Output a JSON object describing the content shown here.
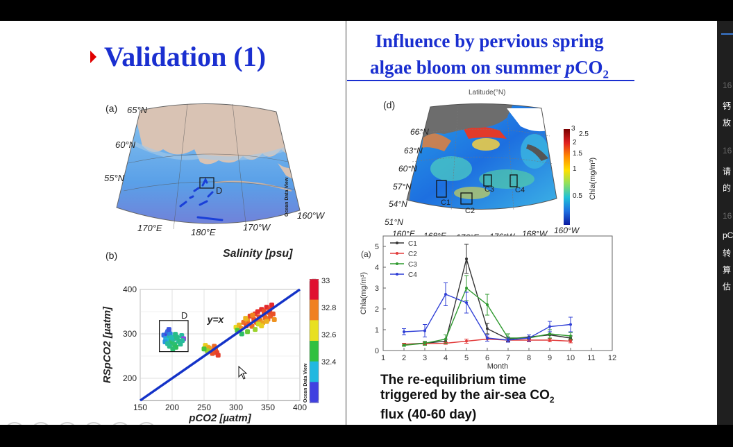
{
  "slide_left": {
    "title": "Validation (1)",
    "panel_a": {
      "label": "(a)",
      "lat_labels": [
        "65°N",
        "60°N",
        "55°N"
      ],
      "lon_labels": [
        "170°E",
        "180°E",
        "170°W",
        "160°W"
      ],
      "box_label": "D",
      "watermark": "Ocean Data View"
    },
    "panel_b": {
      "label": "(b)",
      "colorbar_title": "Salinity [psu]",
      "colorbar_ticks": [
        "33",
        "32.8",
        "32.6",
        "32.4"
      ],
      "box_label": "D",
      "line_label": "y=x",
      "watermark": "Ocean Data View"
    }
  },
  "slide_right": {
    "title_line1": "Influence by pervious spring",
    "title_line2_prefix": "algae bloom on summer ",
    "title_line2_p": "p",
    "title_line2_co": "CO",
    "title_line2_sub": "2",
    "panel_d": {
      "label": "(d)",
      "top_cut_label": "Latitude(°N)",
      "lat_labels": [
        "66°N",
        "63°N",
        "60°N",
        "57°N",
        "54°N",
        "51°N"
      ],
      "lon_labels": [
        "160°E",
        "168°E",
        "176°E",
        "176°W",
        "168°W",
        "160°W"
      ],
      "box_labels": [
        "C1",
        "C2",
        "C3",
        "C4"
      ],
      "colorbar_label": "Chla(mg/m³)",
      "colorbar_ticks": [
        "3",
        "2.5",
        "2",
        "1.5",
        "1",
        "0.5"
      ]
    },
    "caption_line1": "The re-equilibrium time",
    "caption_line2": "triggered by the air-sea CO",
    "caption_line2_sub": "2",
    "caption_line3": "flux (40-60 day)"
  },
  "side_panel": {
    "lines": [
      "16",
      "钙",
      "放",
      "16",
      "请",
      "的",
      "16",
      "pC",
      "转",
      "算",
      "估"
    ]
  },
  "controls": [
    "◁",
    "▷",
    "✎",
    "▣",
    "⚲",
    "⋯"
  ],
  "chart_data": [
    {
      "type": "scatter",
      "panel": "(b)",
      "xlabel": "pCO2 [µatm]",
      "ylabel": "RSpCO2 [µatm]",
      "xlim": [
        150,
        400
      ],
      "ylim": [
        150,
        400
      ],
      "xticks": [
        150,
        200,
        250,
        300,
        350,
        400
      ],
      "yticks": [
        200,
        300,
        400
      ],
      "grid": true,
      "reference_line": {
        "label": "y=x",
        "from": [
          150,
          150
        ],
        "to": [
          400,
          400
        ]
      },
      "colorbar": {
        "title": "Salinity [psu]",
        "min": 32.3,
        "max": 33.1
      },
      "series": [
        {
          "x": [
            187,
            190,
            192,
            194,
            196,
            193,
            198,
            200,
            197,
            195,
            202,
            204,
            199,
            191,
            205,
            206,
            210,
            208,
            212,
            215,
            218,
            196,
            201,
            189,
            193,
            207,
            213,
            216
          ],
          "y": [
            297,
            290,
            301,
            285,
            295,
            305,
            282,
            279,
            300,
            310,
            288,
            276,
            292,
            286,
            299,
            270,
            284,
            291,
            281,
            296,
            289,
            272,
            266,
            282,
            278,
            293,
            277,
            285
          ],
          "s": [
            32.45,
            32.5,
            32.4,
            32.62,
            32.6,
            32.45,
            32.63,
            32.65,
            32.48,
            32.42,
            32.6,
            32.64,
            32.58,
            32.55,
            32.62,
            32.66,
            32.6,
            32.62,
            32.63,
            32.6,
            32.35,
            32.62,
            32.64,
            32.5,
            32.6,
            32.62,
            32.61,
            32.6
          ]
        },
        {
          "x": [
            252,
            256,
            258,
            262,
            265,
            268,
            270,
            258,
            263,
            266,
            272,
            255,
            250
          ],
          "y": [
            274,
            270,
            266,
            262,
            259,
            263,
            258,
            268,
            256,
            272,
            252,
            262,
            266
          ],
          "s": [
            32.82,
            32.85,
            32.9,
            32.95,
            33.0,
            32.98,
            33.02,
            32.88,
            33.0,
            32.96,
            33.03,
            32.75,
            32.7
          ]
        },
        {
          "x": [
            300,
            305,
            308,
            312,
            316,
            318,
            320,
            322,
            325,
            328,
            330,
            332,
            334,
            336,
            338,
            340,
            342,
            344,
            346,
            348,
            350,
            352,
            354,
            356,
            358,
            360,
            315,
            326,
            335,
            344,
            353,
            330,
            340,
            348,
            318,
            309,
            302
          ],
          "y": [
            315,
            320,
            312,
            326,
            318,
            330,
            322,
            340,
            317,
            332,
            345,
            326,
            350,
            338,
            330,
            355,
            325,
            342,
            336,
            360,
            333,
            348,
            340,
            365,
            345,
            332,
            335,
            342,
            322,
            351,
            355,
            310,
            318,
            328,
            305,
            300,
            308
          ],
          "s": [
            32.8,
            32.85,
            32.9,
            32.95,
            33.0,
            32.9,
            32.98,
            33.02,
            32.95,
            33.0,
            33.03,
            32.97,
            33.05,
            33.0,
            32.92,
            33.05,
            32.88,
            33.0,
            32.96,
            33.06,
            32.94,
            33.02,
            32.98,
            33.06,
            33.0,
            32.9,
            32.85,
            32.92,
            32.78,
            33.0,
            33.02,
            32.75,
            32.82,
            32.86,
            32.72,
            32.65,
            32.7
          ]
        }
      ]
    },
    {
      "type": "line",
      "panel": "(a)",
      "xlabel": "Month",
      "ylabel": "Chla(mg/m³)",
      "xlim": [
        1,
        12
      ],
      "ylim": [
        0,
        5.5
      ],
      "xticks": [
        1,
        2,
        3,
        4,
        5,
        6,
        7,
        8,
        9,
        10,
        11,
        12
      ],
      "yticks": [
        0,
        1,
        2,
        3,
        4,
        5
      ],
      "legend": "top-left",
      "x": [
        2,
        3,
        4,
        5,
        6,
        7,
        8,
        9,
        10
      ],
      "series": [
        {
          "name": "C1",
          "color": "#333333",
          "values": [
            0.3,
            0.35,
            0.45,
            4.4,
            1.05,
            0.55,
            0.65,
            0.75,
            0.6
          ],
          "err": [
            0.05,
            0.05,
            0.1,
            0.7,
            0.25,
            0.1,
            0.1,
            0.15,
            0.1
          ]
        },
        {
          "name": "C2",
          "color": "#e23b3b",
          "values": [
            0.3,
            0.33,
            0.35,
            0.45,
            0.55,
            0.5,
            0.5,
            0.5,
            0.45
          ],
          "err": [
            0.05,
            0.05,
            0.05,
            0.1,
            0.1,
            0.08,
            0.08,
            0.08,
            0.08
          ]
        },
        {
          "name": "C3",
          "color": "#2f9a2f",
          "values": [
            0.25,
            0.35,
            0.55,
            3.0,
            2.2,
            0.6,
            0.6,
            0.8,
            0.7
          ],
          "err": [
            0.05,
            0.1,
            0.2,
            0.6,
            0.5,
            0.2,
            0.15,
            0.2,
            0.15
          ]
        },
        {
          "name": "C4",
          "color": "#2f3fd6",
          "values": [
            0.9,
            0.95,
            2.7,
            2.3,
            0.6,
            0.5,
            0.6,
            1.15,
            1.25
          ],
          "err": [
            0.15,
            0.3,
            0.55,
            0.5,
            0.15,
            0.1,
            0.15,
            0.25,
            0.35
          ]
        }
      ]
    }
  ]
}
